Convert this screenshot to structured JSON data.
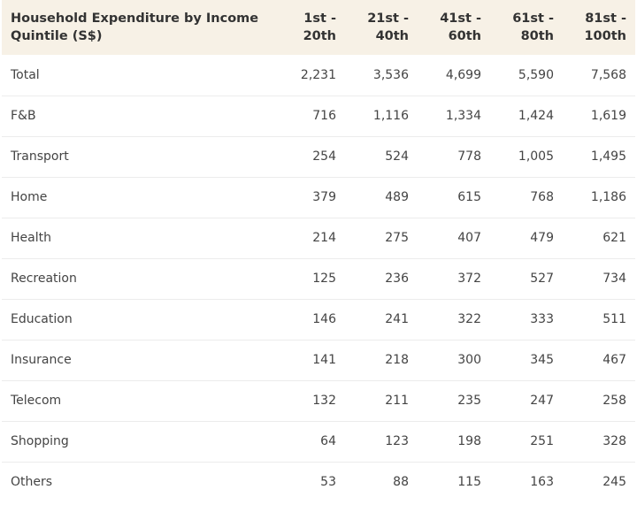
{
  "chart_data": {
    "type": "table",
    "title_lines": [
      "Household Expenditure by Income",
      "Quintile (S$)"
    ],
    "columns": [
      [
        "1st -",
        "20th"
      ],
      [
        "21st -",
        "40th"
      ],
      [
        "41st -",
        "60th"
      ],
      [
        "61st -",
        "80th"
      ],
      [
        "81st -",
        "100th"
      ]
    ],
    "rows": [
      {
        "label": "Total",
        "values": [
          "2,231",
          "3,536",
          "4,699",
          "5,590",
          "7,568"
        ]
      },
      {
        "label": "F&B",
        "values": [
          "716",
          "1,116",
          "1,334",
          "1,424",
          "1,619"
        ]
      },
      {
        "label": "Transport",
        "values": [
          "254",
          "524",
          "778",
          "1,005",
          "1,495"
        ]
      },
      {
        "label": "Home",
        "values": [
          "379",
          "489",
          "615",
          "768",
          "1,186"
        ]
      },
      {
        "label": "Health",
        "values": [
          "214",
          "275",
          "407",
          "479",
          "621"
        ]
      },
      {
        "label": "Recreation",
        "values": [
          "125",
          "236",
          "372",
          "527",
          "734"
        ]
      },
      {
        "label": "Education",
        "values": [
          "146",
          "241",
          "322",
          "333",
          "511"
        ]
      },
      {
        "label": "Insurance",
        "values": [
          "141",
          "218",
          "300",
          "345",
          "467"
        ]
      },
      {
        "label": "Telecom",
        "values": [
          "132",
          "211",
          "235",
          "247",
          "258"
        ]
      },
      {
        "label": "Shopping",
        "values": [
          "64",
          "123",
          "198",
          "251",
          "328"
        ]
      },
      {
        "label": "Others",
        "values": [
          "53",
          "88",
          "115",
          "163",
          "245"
        ]
      }
    ]
  },
  "colors": {
    "header_bg": "#f7f1e6",
    "text": "#333333",
    "row_divider": "#ececec"
  }
}
